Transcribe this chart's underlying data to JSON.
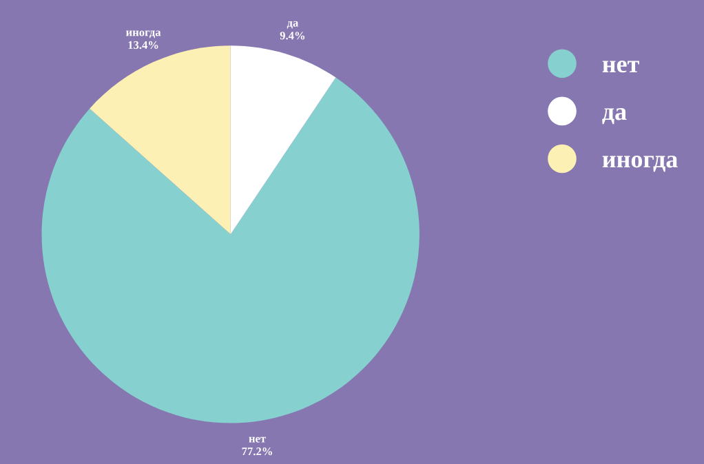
{
  "chart_data": {
    "type": "pie",
    "categories": [
      "нет",
      "да",
      "иногда"
    ],
    "values": [
      77.2,
      9.4,
      13.4
    ],
    "value_labels": [
      "77.2%",
      "9.4%",
      "13.4%"
    ],
    "colors": [
      "#86d0cf",
      "#ffffff",
      "#fdf0b4"
    ],
    "legend": "top right"
  }
}
